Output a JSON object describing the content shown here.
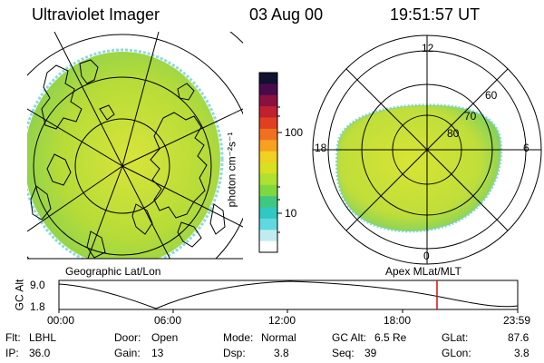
{
  "header": {
    "title": "Ultraviolet Imager",
    "date": "03 Aug 00",
    "time": "19:51:57 UT"
  },
  "colorbar": {
    "label": "photon cm⁻²s⁻¹",
    "ticks": [
      "100",
      "10"
    ],
    "colors": [
      "#101030",
      "#4a0a4a",
      "#8a1040",
      "#c02030",
      "#e04020",
      "#f07020",
      "#f8a020",
      "#f0d020",
      "#d8e020",
      "#b0e030",
      "#80d840",
      "#40c880",
      "#30c8c0",
      "#60d8e0",
      "#c0ecf0",
      "#ffffff"
    ]
  },
  "left_map": {
    "caption": "Geographic Lat/Lon",
    "fill": "#c6e232"
  },
  "right_map": {
    "caption": "Apex MLat/MLT",
    "mlt_labels": {
      "top": "12",
      "left": "18",
      "right": "6",
      "bottom": "0"
    },
    "lat_labels": [
      "60",
      "70",
      "80"
    ],
    "fill": "#d0e23a"
  },
  "timeline": {
    "axis_label": "GC Alt",
    "y_ticks": [
      "9.0",
      "1.8"
    ],
    "x_ticks": [
      "00:00",
      "06:00",
      "12:00",
      "18:00",
      "23:59"
    ],
    "current_marker_color": "#d01010"
  },
  "info": {
    "filter_label": "Flt:",
    "filter_value": "LBHL",
    "ip_label": "IP:",
    "ip_value": "36.0",
    "door_label": "Door:",
    "door_value": "Open",
    "gain_label": "Gain:",
    "gain_value": "13",
    "mode_label": "Mode:",
    "mode_value": "Normal",
    "dsp_label": "Dsp:",
    "dsp_value": "3.8",
    "gcalt_label": "GC Alt:",
    "gcalt_value": "6.5 Re",
    "seq_label": "Seq:",
    "seq_value": "39",
    "glat_label": "GLat:",
    "glat_value": "87.6",
    "glon_label": "GLon:",
    "glon_value": "3.8"
  }
}
